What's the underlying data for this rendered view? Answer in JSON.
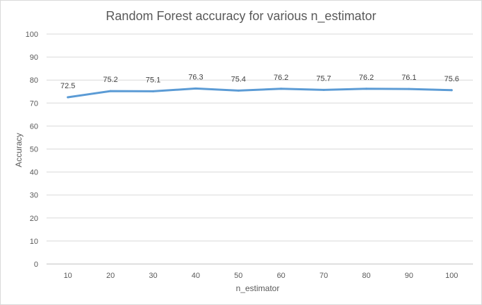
{
  "chart_data": {
    "type": "line",
    "title": "Random Forest accuracy for various n_estimator",
    "xlabel": "n_estimator",
    "ylabel": "Accuracy",
    "categories": [
      "10",
      "20",
      "30",
      "40",
      "50",
      "60",
      "70",
      "80",
      "90",
      "100"
    ],
    "series": [
      {
        "values": [
          72.5,
          75.2,
          75.1,
          76.3,
          75.4,
          76.2,
          75.7,
          76.2,
          76.1,
          75.6
        ],
        "color": "#5b9bd5"
      }
    ],
    "data_labels": [
      "72.5",
      "75.2",
      "75.1",
      "76.3",
      "75.4",
      "76.2",
      "75.7",
      "76.2",
      "76.1",
      "75.6"
    ],
    "ylim": [
      0,
      100
    ],
    "yticks": [
      "0",
      "10",
      "20",
      "30",
      "40",
      "50",
      "60",
      "70",
      "80",
      "90",
      "100"
    ],
    "grid": true,
    "legend": "none"
  }
}
